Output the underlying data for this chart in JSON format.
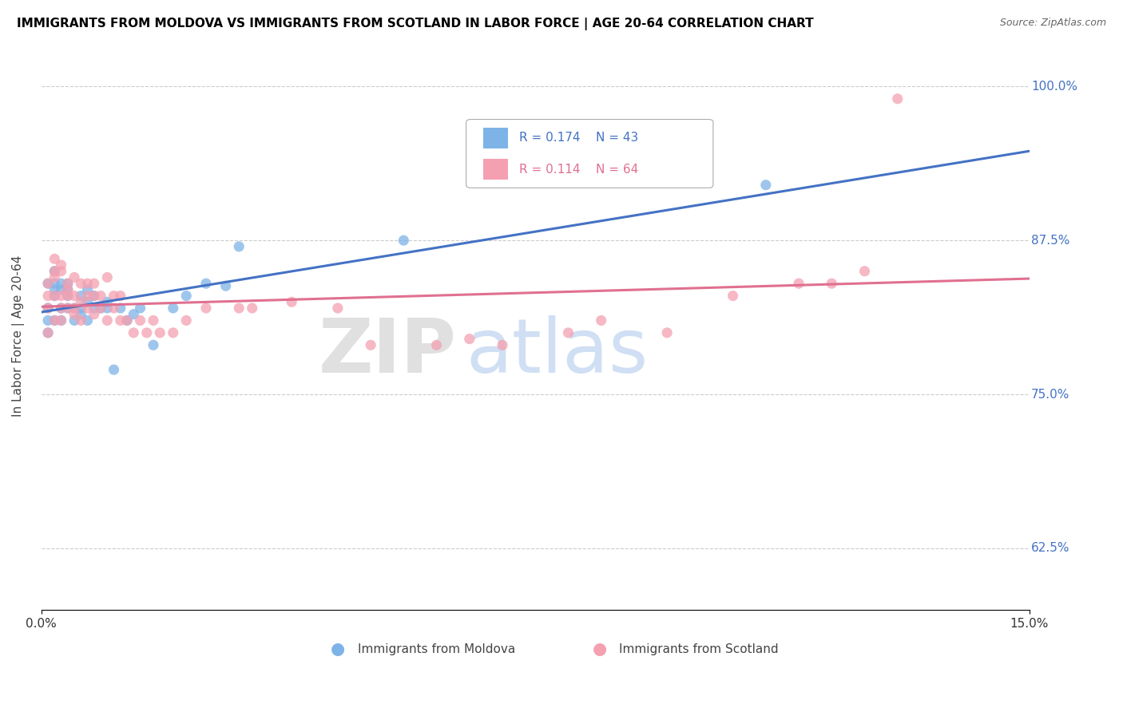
{
  "title": "IMMIGRANTS FROM MOLDOVA VS IMMIGRANTS FROM SCOTLAND IN LABOR FORCE | AGE 20-64 CORRELATION CHART",
  "source": "Source: ZipAtlas.com",
  "ylabel": "In Labor Force | Age 20-64",
  "xlim": [
    0.0,
    0.15
  ],
  "ylim": [
    0.575,
    1.02
  ],
  "yticks": [
    0.625,
    0.75,
    0.875,
    1.0
  ],
  "yticklabels": [
    "62.5%",
    "75.0%",
    "87.5%",
    "100.0%"
  ],
  "xticks": [
    0.0,
    0.15
  ],
  "xticklabels": [
    "0.0%",
    "15.0%"
  ],
  "legend_r1": "R = 0.174",
  "legend_n1": "N = 43",
  "legend_r2": "R = 0.114",
  "legend_n2": "N = 64",
  "moldova_color": "#7eb3e8",
  "scotland_color": "#f4a0b0",
  "moldova_line_color": "#4472c4",
  "scotland_line_color": "#e07090",
  "moldova_x": [
    0.001,
    0.001,
    0.001,
    0.001,
    0.002,
    0.002,
    0.002,
    0.002,
    0.002,
    0.003,
    0.003,
    0.003,
    0.003,
    0.004,
    0.004,
    0.004,
    0.004,
    0.005,
    0.005,
    0.006,
    0.006,
    0.006,
    0.007,
    0.007,
    0.007,
    0.008,
    0.008,
    0.009,
    0.01,
    0.01,
    0.011,
    0.012,
    0.013,
    0.014,
    0.015,
    0.017,
    0.02,
    0.022,
    0.025,
    0.028,
    0.03,
    0.055,
    0.11
  ],
  "moldova_y": [
    0.81,
    0.82,
    0.84,
    0.8,
    0.85,
    0.84,
    0.835,
    0.81,
    0.83,
    0.84,
    0.835,
    0.82,
    0.81,
    0.835,
    0.82,
    0.83,
    0.84,
    0.82,
    0.81,
    0.82,
    0.83,
    0.815,
    0.825,
    0.81,
    0.835,
    0.82,
    0.83,
    0.82,
    0.82,
    0.825,
    0.77,
    0.82,
    0.81,
    0.815,
    0.82,
    0.79,
    0.82,
    0.83,
    0.84,
    0.838,
    0.87,
    0.875,
    0.92
  ],
  "scotland_x": [
    0.001,
    0.001,
    0.001,
    0.001,
    0.002,
    0.002,
    0.002,
    0.002,
    0.002,
    0.003,
    0.003,
    0.003,
    0.003,
    0.003,
    0.004,
    0.004,
    0.004,
    0.004,
    0.005,
    0.005,
    0.005,
    0.005,
    0.006,
    0.006,
    0.006,
    0.007,
    0.007,
    0.007,
    0.008,
    0.008,
    0.008,
    0.009,
    0.009,
    0.01,
    0.01,
    0.011,
    0.011,
    0.012,
    0.012,
    0.013,
    0.014,
    0.015,
    0.016,
    0.017,
    0.018,
    0.02,
    0.022,
    0.025,
    0.03,
    0.032,
    0.038,
    0.045,
    0.05,
    0.06,
    0.065,
    0.07,
    0.08,
    0.085,
    0.095,
    0.105,
    0.115,
    0.12,
    0.125,
    0.13
  ],
  "scotland_y": [
    0.82,
    0.83,
    0.84,
    0.8,
    0.86,
    0.85,
    0.83,
    0.81,
    0.845,
    0.855,
    0.83,
    0.82,
    0.85,
    0.81,
    0.84,
    0.83,
    0.82,
    0.835,
    0.845,
    0.82,
    0.815,
    0.83,
    0.84,
    0.825,
    0.81,
    0.84,
    0.83,
    0.82,
    0.84,
    0.83,
    0.815,
    0.83,
    0.82,
    0.845,
    0.81,
    0.83,
    0.82,
    0.81,
    0.83,
    0.81,
    0.8,
    0.81,
    0.8,
    0.81,
    0.8,
    0.8,
    0.81,
    0.82,
    0.82,
    0.82,
    0.825,
    0.82,
    0.79,
    0.79,
    0.795,
    0.79,
    0.8,
    0.81,
    0.8,
    0.83,
    0.84,
    0.84,
    0.85,
    0.99
  ]
}
